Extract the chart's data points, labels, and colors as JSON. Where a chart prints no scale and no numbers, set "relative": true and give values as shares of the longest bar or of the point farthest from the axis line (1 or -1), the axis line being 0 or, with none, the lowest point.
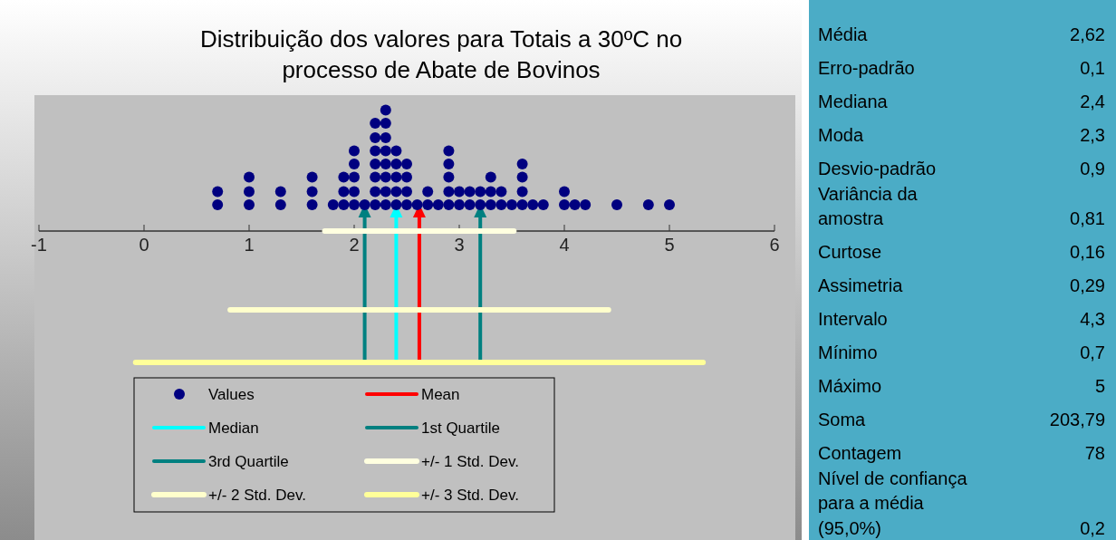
{
  "chart_data": [
    {
      "type": "scatter",
      "title": "Distribuição dos valores para Totais a 30ºC no processo de Abate de Bovinos",
      "relative": true,
      "legend": "bottom left",
      "xlim": [
        -1,
        6
      ],
      "xticks": [
        -1,
        0,
        1,
        2,
        3,
        4,
        5,
        6
      ],
      "series": [
        {
          "name": "Values",
          "color": "#000080",
          "marker": "circle",
          "x": [
            0.7,
            0.7,
            1,
            1,
            1,
            1.3,
            1.3,
            1.6,
            1.6,
            1.6,
            1.8,
            1.9,
            1.9,
            1.9,
            2,
            2,
            2,
            2,
            2,
            2.1,
            2.2,
            2.2,
            2.2,
            2.2,
            2.2,
            2.2,
            2.2,
            2.3,
            2.3,
            2.3,
            2.3,
            2.3,
            2.3,
            2.3,
            2.3,
            2.4,
            2.4,
            2.4,
            2.4,
            2.4,
            2.5,
            2.5,
            2.5,
            2.5,
            2.6,
            2.7,
            2.7,
            2.8,
            2.9,
            2.9,
            2.9,
            2.9,
            2.9,
            3,
            3,
            3.1,
            3.1,
            3.2,
            3.2,
            3.3,
            3.3,
            3.3,
            3.4,
            3.4,
            3.5,
            3.6,
            3.6,
            3.6,
            3.6,
            3.7,
            3.8,
            4,
            4,
            4.1,
            4.2,
            4.5,
            4.8,
            5
          ],
          "values": [
            0.2,
            0.3,
            0.2,
            0.3,
            0.41,
            0.2,
            0.3,
            0.2,
            0.3,
            0.41,
            0.2,
            0.2,
            0.3,
            0.41,
            0.2,
            0.3,
            0.41,
            0.51,
            0.61,
            0.2,
            0.2,
            0.3,
            0.41,
            0.51,
            0.61,
            0.71,
            0.82,
            0.2,
            0.3,
            0.41,
            0.51,
            0.61,
            0.71,
            0.82,
            0.92,
            0.2,
            0.3,
            0.41,
            0.51,
            0.61,
            0.2,
            0.3,
            0.41,
            0.51,
            0.2,
            0.2,
            0.3,
            0.2,
            0.2,
            0.3,
            0.41,
            0.51,
            0.61,
            0.2,
            0.3,
            0.2,
            0.3,
            0.2,
            0.3,
            0.2,
            0.3,
            0.41,
            0.2,
            0.3,
            0.2,
            0.2,
            0.3,
            0.41,
            0.51,
            0.2,
            0.2,
            0.2,
            0.3,
            0.2,
            0.2,
            0.2,
            0.2,
            0.2
          ]
        },
        {
          "type": "line",
          "name": "+/- 1 Std. Dev.",
          "color": "#ffffe0",
          "x": [
            1.72,
            3.52
          ],
          "values": [
            0,
            0
          ]
        },
        {
          "type": "line",
          "name": "+/- 2 Std. Dev.",
          "color": "#ffffcc",
          "x": [
            0.82,
            4.42
          ],
          "values": [
            -0.6,
            -0.6
          ]
        },
        {
          "type": "line",
          "name": "+/- 3 Std. Dev.",
          "color": "#ffff99",
          "x": [
            -0.08,
            5.32
          ],
          "values": [
            -1,
            -1
          ]
        }
      ],
      "ref_lines": [
        {
          "axis": "x",
          "value": 2.62,
          "label": "Mean",
          "color": "#ff0000"
        },
        {
          "axis": "x",
          "value": 2.4,
          "label": "Median",
          "color": "#00ffff"
        },
        {
          "axis": "x",
          "value": 2.1,
          "label": "1st Quartile",
          "color": "#008080"
        },
        {
          "axis": "x",
          "value": 3.2,
          "label": "3rd Quartile",
          "color": "#008080"
        }
      ]
    },
    {
      "type": "other",
      "categories": [
        "Média",
        "Erro-padrão",
        "Mediana",
        "Moda",
        "Desvio-padrão",
        "Variância da amostra",
        "Curtose",
        "Assimetria",
        "Intervalo",
        "Mínimo",
        "Máximo",
        "Soma",
        "Contagem",
        "Nível de confiança para a média (95,0%)"
      ],
      "value_labels": [
        "2,62",
        "0,1",
        "2,4",
        "2,3",
        "0,9",
        "0,81",
        "0,16",
        "0,29",
        "4,3",
        "0,7",
        "5",
        "203,79",
        "78",
        "0,2"
      ],
      "color": "#4bacc6"
    }
  ]
}
